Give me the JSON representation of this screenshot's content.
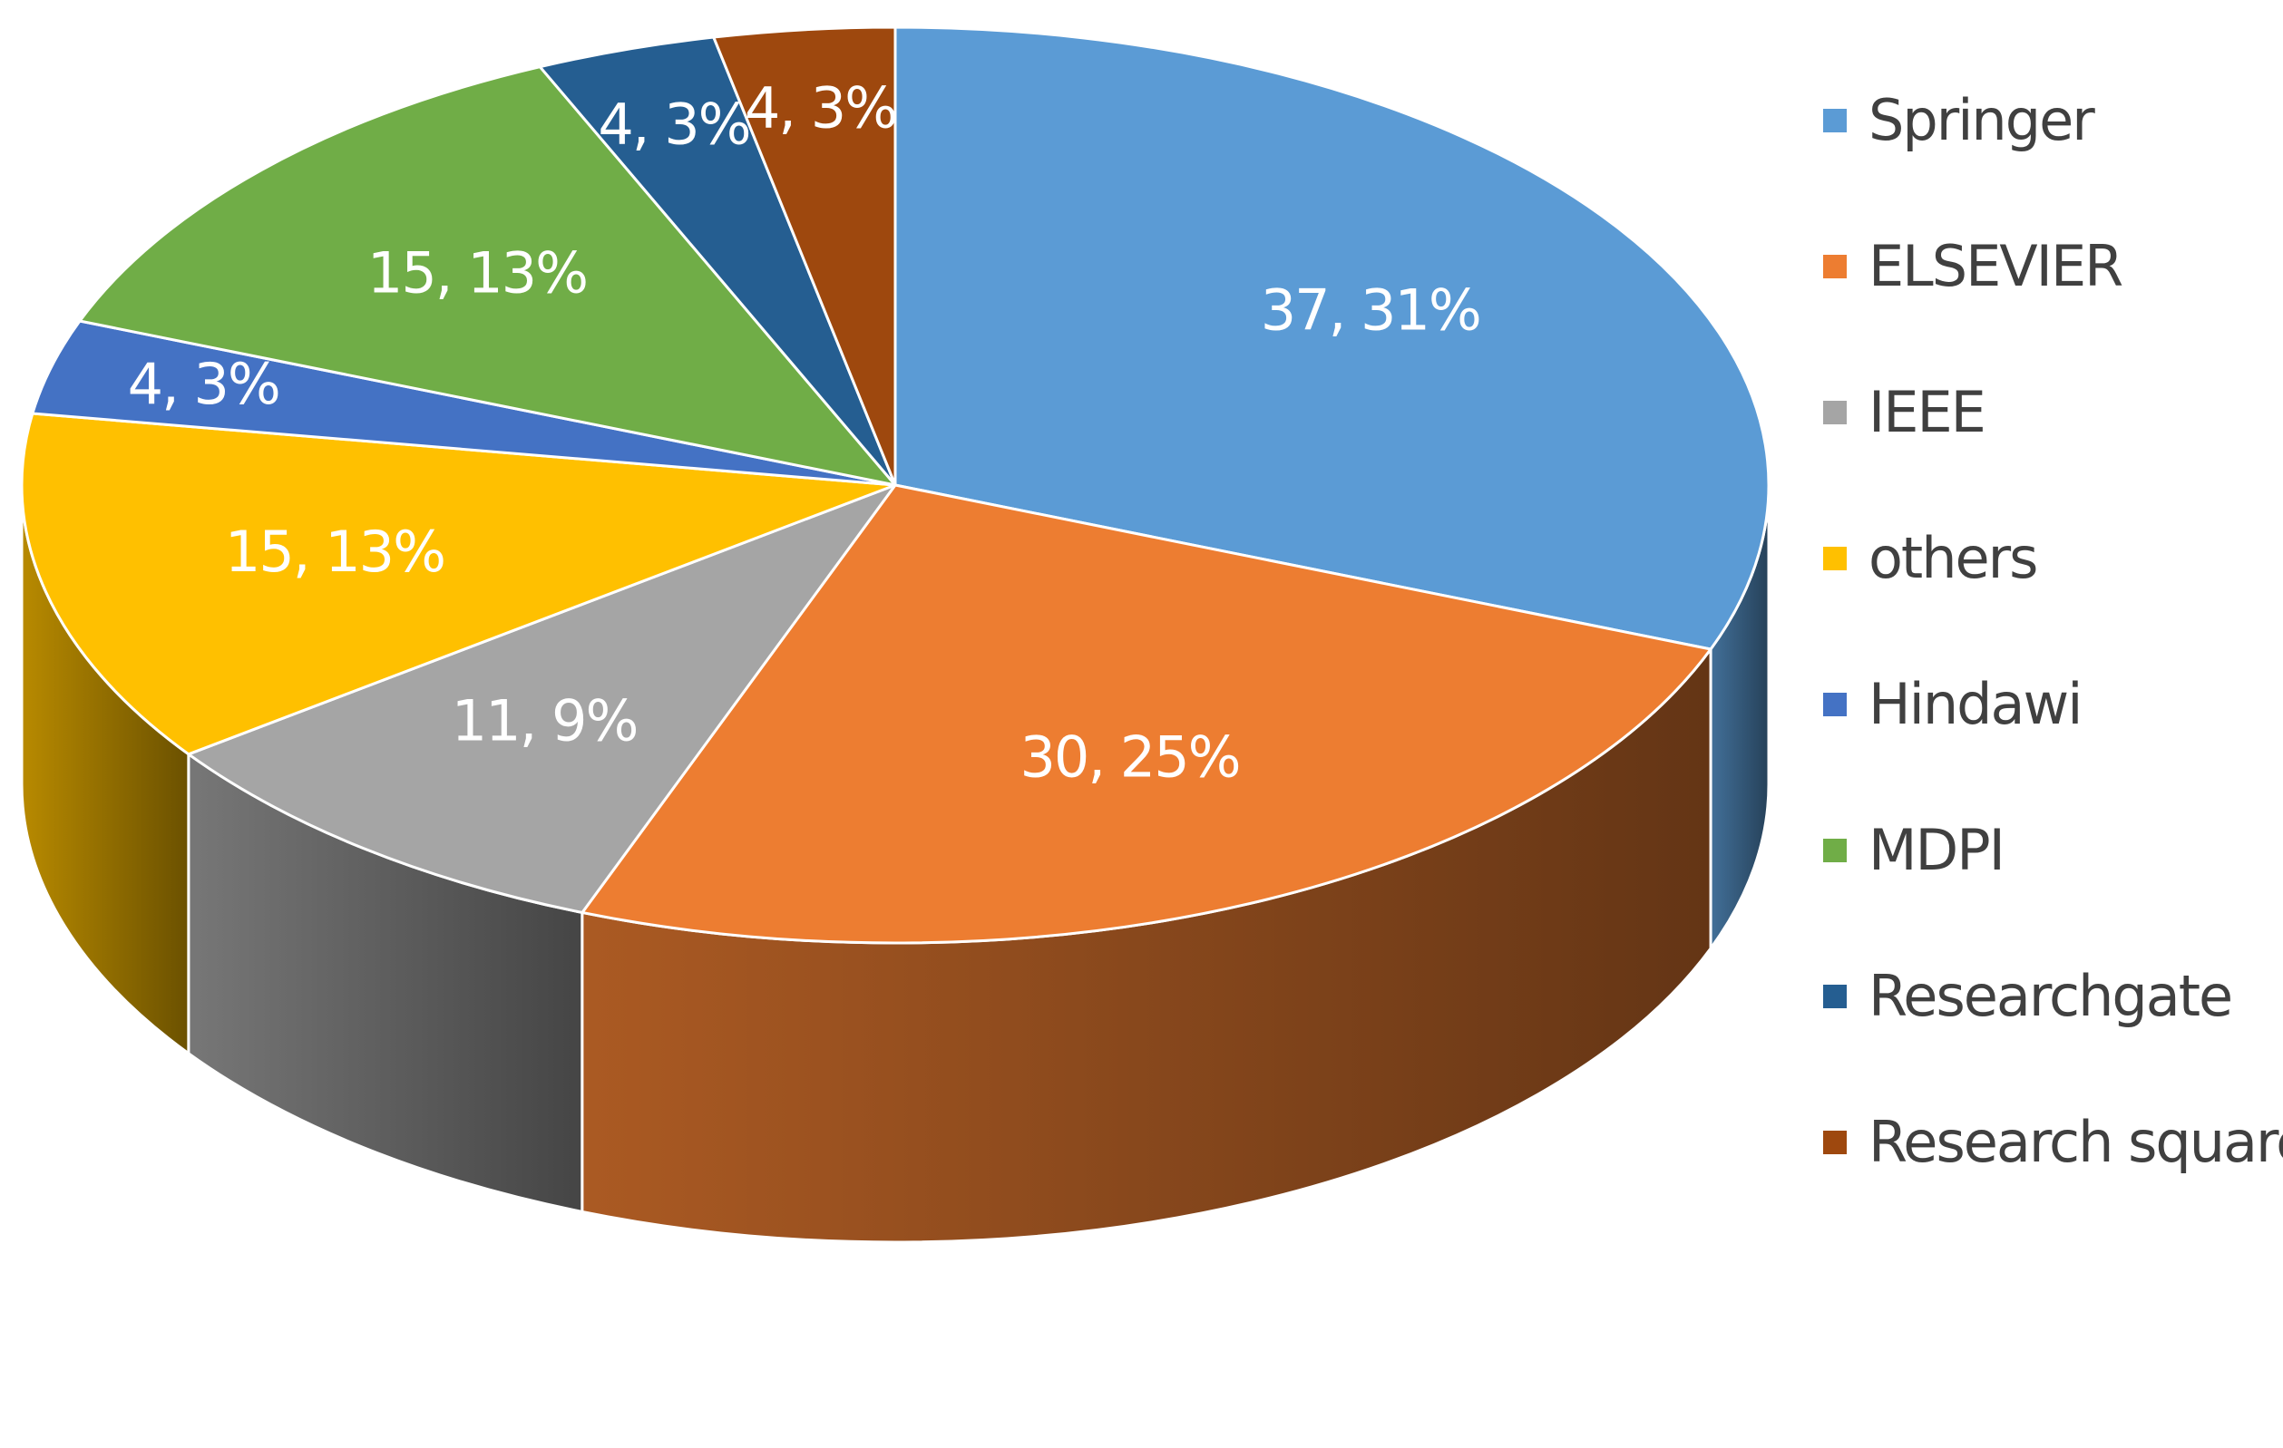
{
  "chart_data": {
    "type": "pie",
    "style": "3d",
    "legend_position": "right",
    "start_angle_deg": 0,
    "direction": "clockwise",
    "slices": [
      {
        "name": "Springer",
        "value": 37,
        "percent": "31%",
        "label": "37, 31%",
        "color": "#5B9BD5"
      },
      {
        "name": "ELSEVIER",
        "value": 30,
        "percent": "25%",
        "label": "30, 25%",
        "color": "#ED7D31"
      },
      {
        "name": "IEEE",
        "value": 11,
        "percent": "9%",
        "label": "11, 9%",
        "color": "#A5A5A5"
      },
      {
        "name": "others",
        "value": 15,
        "percent": "13%",
        "label": "15, 13%",
        "color": "#FFC000"
      },
      {
        "name": "Hindawi",
        "value": 4,
        "percent": "3%",
        "label": "4, 3%",
        "color": "#4472C4"
      },
      {
        "name": "MDPI",
        "value": 15,
        "percent": "13%",
        "label": "15, 13%",
        "color": "#70AD47"
      },
      {
        "name": "Researchgate",
        "value": 4,
        "percent": "3%",
        "label": "4, 3%",
        "color": "#255E91"
      },
      {
        "name": "Research square",
        "value": 4,
        "percent": "3%",
        "label": "4, 3%",
        "color": "#9E480E"
      }
    ]
  }
}
